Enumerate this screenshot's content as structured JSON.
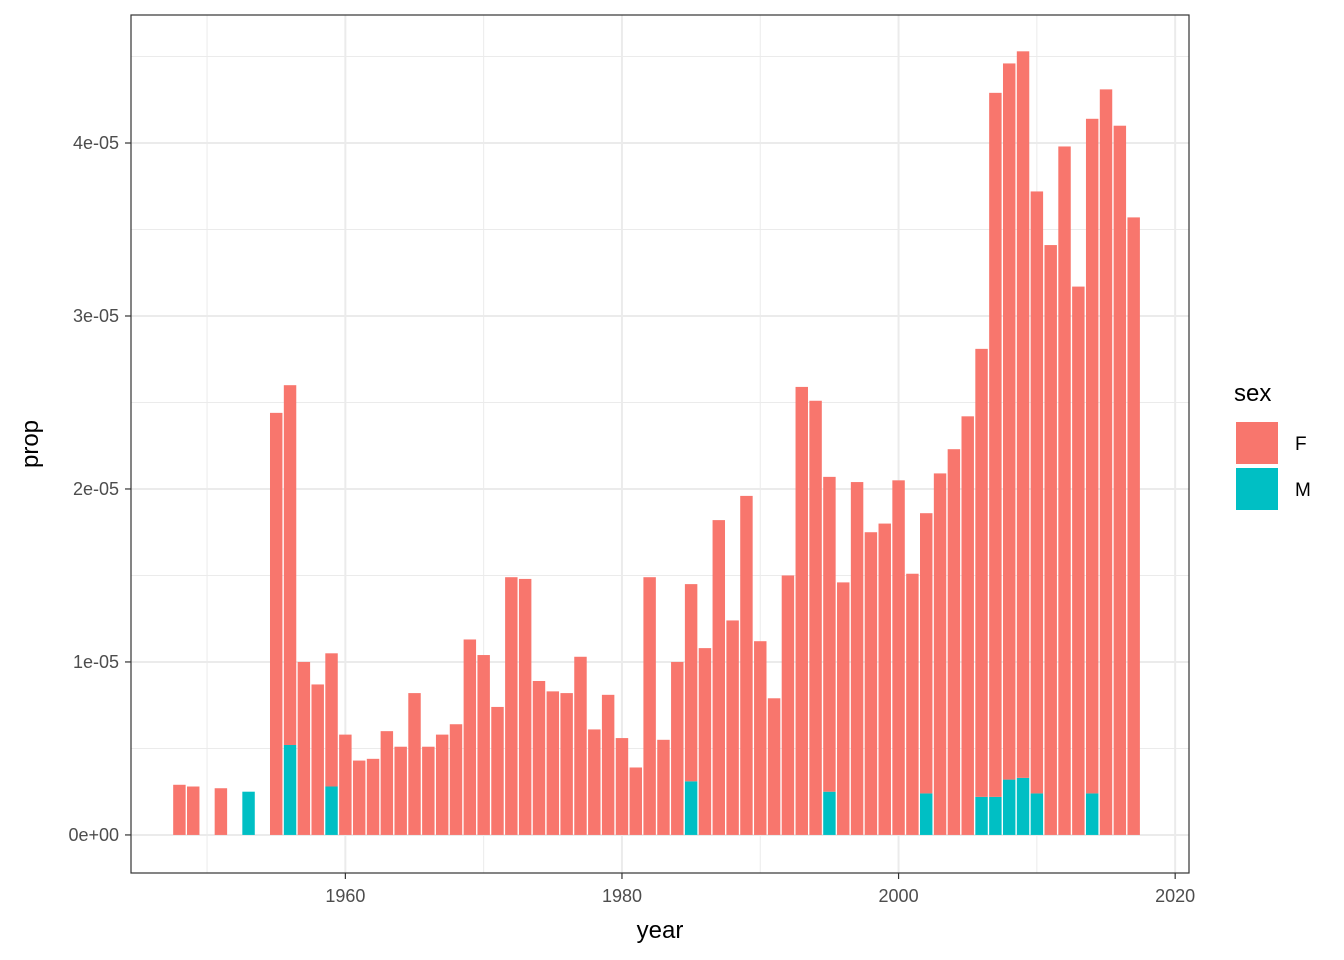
{
  "chart_data": {
    "type": "bar",
    "stacked": true,
    "xlabel": "year",
    "ylabel": "prop",
    "xlim": [
      1944.5,
      2021.0
    ],
    "ylim": [
      -2.2e-06,
      4.74e-05
    ],
    "x_ticks": [
      1960,
      1980,
      2000,
      2020
    ],
    "x_tick_labels": [
      "1960",
      "1980",
      "2000",
      "2020"
    ],
    "y_ticks": [
      0,
      1e-05,
      2e-05,
      3e-05,
      4e-05
    ],
    "y_tick_labels": [
      "0e+00",
      "1e-05",
      "2e-05",
      "3e-05",
      "4e-05"
    ],
    "grid": true,
    "legend": {
      "title": "sex",
      "position": "right"
    },
    "series": [
      {
        "name": "F",
        "color": "#F8766D",
        "points": [
          [
            1948,
            2.9e-06
          ],
          [
            1949,
            2.8e-06
          ],
          [
            1951,
            2.7e-06
          ],
          [
            1955,
            2.44e-05
          ],
          [
            1956,
            2.08e-05
          ],
          [
            1957,
            1e-05
          ],
          [
            1958,
            8.7e-06
          ],
          [
            1959,
            7.7e-06
          ],
          [
            1960,
            5.8e-06
          ],
          [
            1961,
            4.3e-06
          ],
          [
            1962,
            4.4e-06
          ],
          [
            1963,
            6e-06
          ],
          [
            1964,
            5.1e-06
          ],
          [
            1965,
            8.2e-06
          ],
          [
            1966,
            5.1e-06
          ],
          [
            1967,
            5.8e-06
          ],
          [
            1968,
            6.4e-06
          ],
          [
            1969,
            1.13e-05
          ],
          [
            1970,
            1.04e-05
          ],
          [
            1971,
            7.4e-06
          ],
          [
            1972,
            1.49e-05
          ],
          [
            1973,
            1.48e-05
          ],
          [
            1974,
            8.9e-06
          ],
          [
            1975,
            8.3e-06
          ],
          [
            1976,
            8.2e-06
          ],
          [
            1977,
            1.03e-05
          ],
          [
            1978,
            6.1e-06
          ],
          [
            1979,
            8.1e-06
          ],
          [
            1980,
            5.6e-06
          ],
          [
            1981,
            3.9e-06
          ],
          [
            1982,
            1.49e-05
          ],
          [
            1983,
            5.5e-06
          ],
          [
            1984,
            1e-05
          ],
          [
            1985,
            1.14e-05
          ],
          [
            1986,
            1.08e-05
          ],
          [
            1987,
            1.82e-05
          ],
          [
            1988,
            1.24e-05
          ],
          [
            1989,
            1.96e-05
          ],
          [
            1990,
            1.12e-05
          ],
          [
            1991,
            7.9e-06
          ],
          [
            1992,
            1.5e-05
          ],
          [
            1993,
            2.59e-05
          ],
          [
            1994,
            2.51e-05
          ],
          [
            1995,
            1.82e-05
          ],
          [
            1996,
            1.46e-05
          ],
          [
            1997,
            2.04e-05
          ],
          [
            1998,
            1.75e-05
          ],
          [
            1999,
            1.8e-05
          ],
          [
            2000,
            2.05e-05
          ],
          [
            2001,
            1.51e-05
          ],
          [
            2002,
            1.62e-05
          ],
          [
            2003,
            2.09e-05
          ],
          [
            2004,
            2.23e-05
          ],
          [
            2005,
            2.42e-05
          ],
          [
            2006,
            2.59e-05
          ],
          [
            2007,
            4.07e-05
          ],
          [
            2008,
            4.14e-05
          ],
          [
            2009,
            4.2e-05
          ],
          [
            2010,
            3.48e-05
          ],
          [
            2011,
            3.41e-05
          ],
          [
            2012,
            3.98e-05
          ],
          [
            2013,
            3.17e-05
          ],
          [
            2014,
            3.9e-05
          ],
          [
            2015,
            4.31e-05
          ],
          [
            2016,
            4.1e-05
          ],
          [
            2017,
            3.57e-05
          ]
        ]
      },
      {
        "name": "M",
        "color": "#00BFC4",
        "points": [
          [
            1953,
            2.5e-06
          ],
          [
            1956,
            5.2e-06
          ],
          [
            1959,
            2.8e-06
          ],
          [
            1985,
            3.1e-06
          ],
          [
            1995,
            2.5e-06
          ],
          [
            2002,
            2.4e-06
          ],
          [
            2006,
            2.2e-06
          ],
          [
            2007,
            2.2e-06
          ],
          [
            2008,
            3.2e-06
          ],
          [
            2009,
            3.3e-06
          ],
          [
            2010,
            2.4e-06
          ],
          [
            2014,
            2.4e-06
          ]
        ]
      }
    ]
  }
}
